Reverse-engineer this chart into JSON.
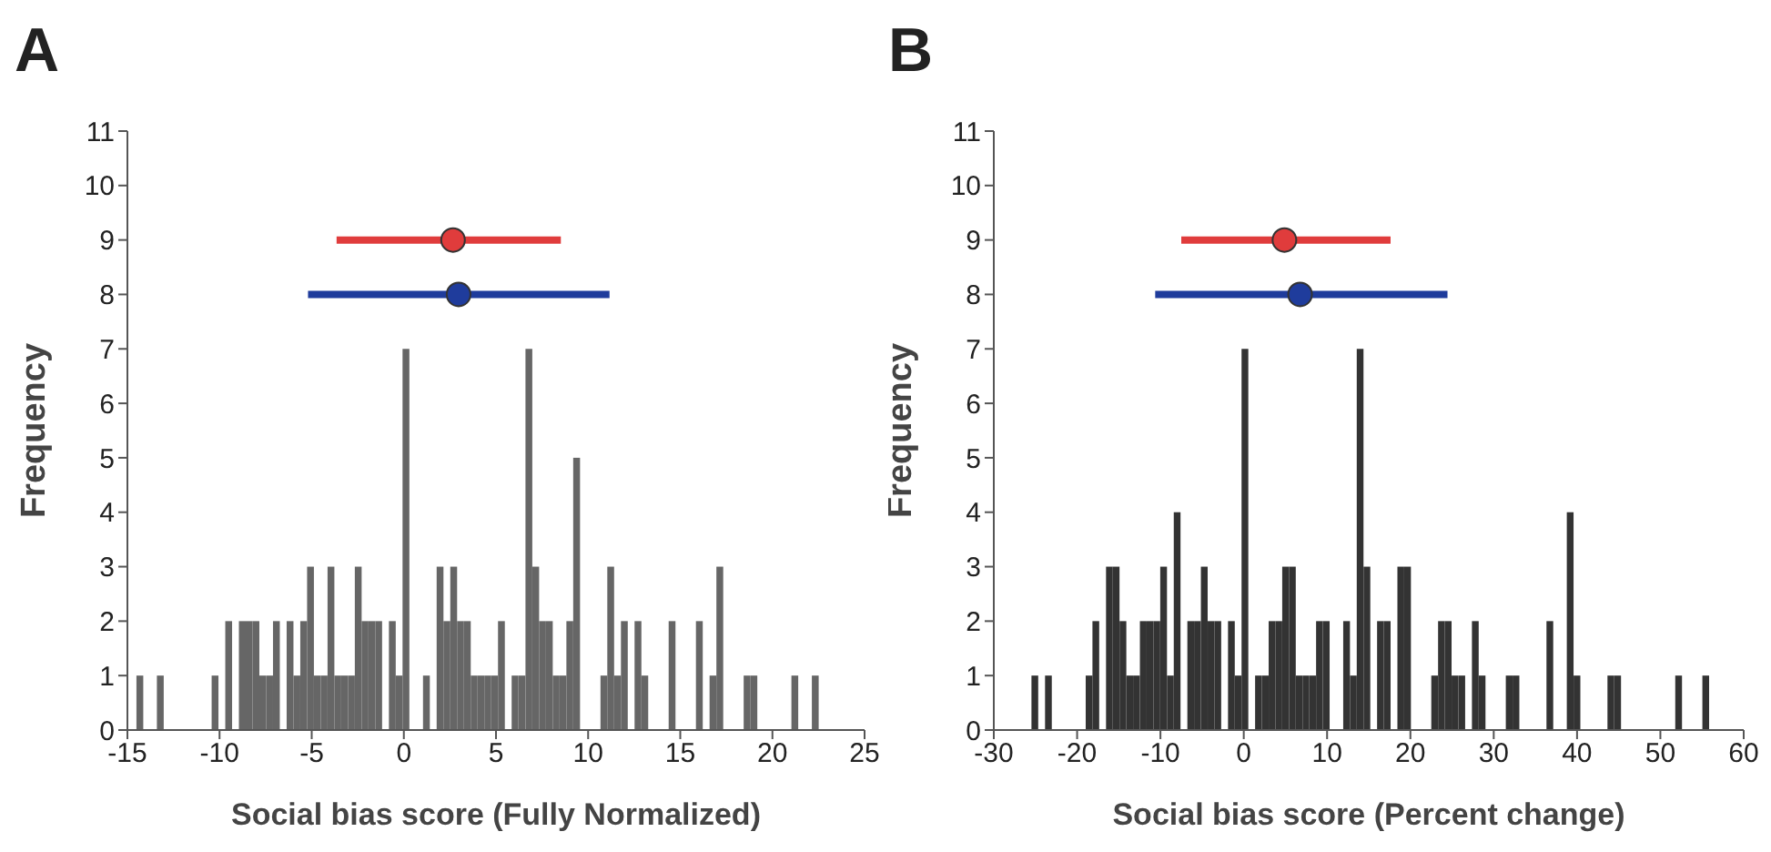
{
  "chart_data": [
    {
      "type": "histogram",
      "title": "A",
      "xlabel": "Social bias score (Fully Normalized)",
      "ylabel": "Frequency",
      "xlim": [
        -15,
        25
      ],
      "xticks": [
        -15,
        -10,
        -5,
        0,
        5,
        10,
        15,
        20,
        25
      ],
      "ylim": [
        0,
        11
      ],
      "yticks": [
        0,
        1,
        2,
        3,
        4,
        5,
        6,
        7,
        8,
        9,
        10,
        11
      ],
      "grid": false,
      "legend": false,
      "marker": "circle",
      "bins": [
        -14.51,
        -14.14,
        -13.77,
        -13.4,
        -13.03,
        -12.66,
        -12.29,
        -11.91,
        -11.54,
        -11.17,
        -10.8,
        -10.43,
        -10.06,
        -9.69,
        -9.32,
        -8.95,
        -8.58,
        -8.21,
        -7.84,
        -7.47,
        -7.1,
        -6.73,
        -6.36,
        -5.99,
        -5.62,
        -5.25,
        -4.88,
        -4.51,
        -4.14,
        -3.77,
        -3.4,
        -3.03,
        -2.66,
        -2.29,
        -1.92,
        -1.55,
        -1.18,
        -0.81,
        -0.44,
        -0.07,
        0.3,
        0.67,
        1.04,
        1.41,
        1.78,
        2.15,
        2.52,
        2.89,
        3.26,
        3.63,
        4.0,
        4.37,
        4.74,
        5.11,
        5.48,
        5.85,
        6.22,
        6.6,
        6.97,
        7.34,
        7.71,
        8.08,
        8.45,
        8.82,
        9.19,
        9.56,
        9.93,
        10.3,
        10.67,
        11.04,
        11.41,
        11.78,
        12.15,
        12.52,
        12.89,
        13.26,
        13.63,
        14.0,
        14.37,
        14.74,
        15.11,
        15.48,
        15.85,
        16.22,
        16.59,
        16.96,
        17.33,
        17.7,
        18.07,
        18.44,
        18.81,
        19.18,
        19.55,
        19.92,
        20.29,
        20.66,
        21.03,
        21.4,
        21.77,
        22.14,
        22.51
      ],
      "series": [
        {
          "color": "#666666",
          "values": [
            1,
            0,
            0,
            1,
            0,
            0,
            0,
            0,
            0,
            0,
            0,
            1,
            0,
            2,
            0,
            2,
            2,
            2,
            1,
            1,
            2,
            0,
            2,
            1,
            2,
            3,
            1,
            1,
            3,
            1,
            1,
            1,
            3,
            2,
            2,
            2,
            0,
            2,
            1,
            7,
            0,
            0,
            1,
            0,
            3,
            2,
            3,
            2,
            2,
            1,
            1,
            1,
            1,
            2,
            0,
            1,
            1,
            7,
            3,
            2,
            2,
            1,
            1,
            2,
            5,
            0,
            0,
            0,
            1,
            3,
            1,
            2,
            0,
            2,
            1,
            0,
            0,
            0,
            2,
            0,
            0,
            0,
            2,
            0,
            1,
            3,
            0,
            0,
            0,
            1,
            1,
            0,
            0,
            0,
            0,
            0,
            1,
            0,
            0,
            1
          ]
        },
        {
          "type": "scatter",
          "color": "#e03c3c",
          "x": [
            2.67
          ],
          "values": [
            9
          ],
          "xerrors": [
            [
              -3.65,
              8.52
            ]
          ]
        },
        {
          "type": "scatter",
          "color": "#1f3c9c",
          "x": [
            2.97
          ],
          "values": [
            8
          ],
          "xerrors": [
            [
              -5.2,
              11.16
            ]
          ]
        }
      ]
    },
    {
      "type": "histogram",
      "title": "B",
      "xlabel": "Social bias score (Percent change)",
      "ylabel": "Frequency",
      "xlim": [
        -30,
        60
      ],
      "xticks": [
        -30,
        -20,
        -10,
        0,
        10,
        20,
        30,
        40,
        50,
        60
      ],
      "ylim": [
        0,
        11
      ],
      "yticks": [
        0,
        1,
        2,
        3,
        4,
        5,
        6,
        7,
        8,
        9,
        10,
        11
      ],
      "grid": false,
      "legend": false,
      "marker": "circle",
      "bins": [
        -25.48,
        -24.67,
        -23.85,
        -23.04,
        -22.23,
        -21.41,
        -20.6,
        -19.79,
        -18.97,
        -18.16,
        -17.35,
        -16.53,
        -15.72,
        -14.91,
        -14.09,
        -13.28,
        -12.47,
        -11.65,
        -10.84,
        -10.03,
        -9.21,
        -8.4,
        -7.59,
        -6.77,
        -5.96,
        -5.15,
        -4.33,
        -3.52,
        -2.71,
        -1.89,
        -1.08,
        -0.27,
        0.55,
        1.36,
        2.17,
        2.99,
        3.8,
        4.61,
        5.43,
        6.24,
        7.05,
        7.87,
        8.68,
        9.49,
        10.31,
        11.12,
        11.93,
        12.75,
        13.56,
        14.37,
        15.19,
        16.0,
        16.81,
        17.62,
        18.44,
        19.25,
        20.06,
        20.88,
        21.69,
        22.5,
        23.32,
        24.13,
        24.94,
        25.76,
        26.57,
        27.38,
        28.2,
        29.01,
        29.82,
        30.64,
        31.45,
        32.26,
        33.08,
        33.89,
        34.7,
        35.52,
        36.33,
        37.14,
        37.96,
        38.77,
        39.58,
        40.4,
        41.21,
        42.02,
        42.84,
        43.65,
        44.46,
        45.28,
        46.09,
        46.9,
        47.72,
        48.53,
        49.34,
        50.16,
        50.97,
        51.78,
        52.6,
        53.41,
        54.22,
        55.04,
        55.85
      ],
      "series": [
        {
          "color": "#333333",
          "values": [
            1,
            0,
            1,
            0,
            0,
            0,
            0,
            0,
            1,
            2,
            0,
            3,
            3,
            2,
            1,
            1,
            2,
            2,
            2,
            3,
            1,
            4,
            0,
            2,
            2,
            3,
            2,
            2,
            0,
            2,
            1,
            7,
            0,
            1,
            1,
            2,
            2,
            3,
            3,
            1,
            1,
            1,
            2,
            2,
            0,
            0,
            2,
            1,
            7,
            3,
            0,
            2,
            2,
            0,
            3,
            3,
            0,
            0,
            0,
            1,
            2,
            2,
            1,
            1,
            0,
            2,
            1,
            0,
            0,
            0,
            1,
            1,
            0,
            0,
            0,
            0,
            2,
            0,
            0,
            4,
            1,
            0,
            0,
            0,
            0,
            1,
            1,
            0,
            0,
            0,
            0,
            0,
            0,
            0,
            0,
            1,
            0,
            0,
            0,
            1
          ]
        },
        {
          "type": "scatter",
          "color": "#e03c3c",
          "x": [
            4.88
          ],
          "values": [
            9
          ],
          "xerrors": [
            [
              -7.5,
              17.62
            ]
          ]
        },
        {
          "type": "scatter",
          "color": "#1f3c9c",
          "x": [
            6.76
          ],
          "values": [
            8
          ],
          "xerrors": [
            [
              -10.63,
              24.45
            ]
          ]
        }
      ]
    }
  ]
}
